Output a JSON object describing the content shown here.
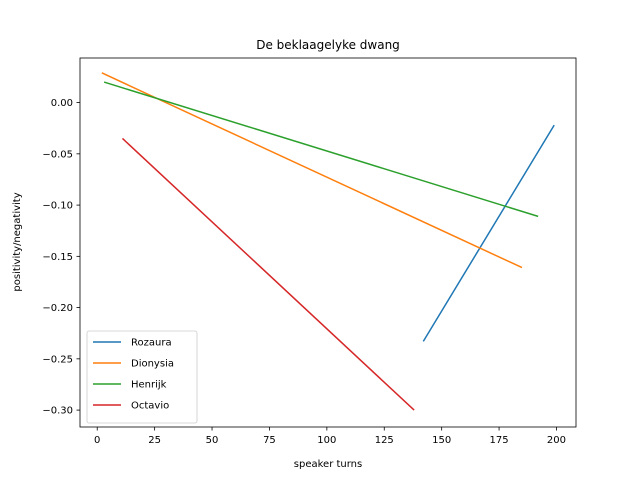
{
  "chart_data": {
    "type": "line",
    "title": "De beklaagelyke dwang",
    "xlabel": "speaker turns",
    "ylabel": "positivity/negativity",
    "xlim": [
      -7.5,
      208.5
    ],
    "ylim": [
      -0.3165,
      0.0435
    ],
    "xticks": [
      0,
      25,
      50,
      75,
      100,
      125,
      150,
      175,
      200
    ],
    "xtick_labels": [
      "0",
      "25",
      "50",
      "75",
      "100",
      "125",
      "150",
      "175",
      "200"
    ],
    "yticks": [
      0.0,
      -0.05,
      -0.1,
      -0.15,
      -0.2,
      -0.25,
      -0.3
    ],
    "ytick_labels": [
      "0.00",
      "−0.05",
      "−0.10",
      "−0.15",
      "−0.20",
      "−0.25",
      "−0.30"
    ],
    "grid": false,
    "legend_position": "lower-left",
    "series": [
      {
        "name": "Rozaura",
        "color": "#1f77b4",
        "x": [
          142,
          199
        ],
        "y": [
          -0.233,
          -0.022
        ]
      },
      {
        "name": "Dionysia",
        "color": "#ff7f0e",
        "x": [
          2,
          185
        ],
        "y": [
          0.029,
          -0.161
        ]
      },
      {
        "name": "Henrijk",
        "color": "#2ca02c",
        "x": [
          3,
          192
        ],
        "y": [
          0.02,
          -0.111
        ]
      },
      {
        "name": "Octavio",
        "color": "#d62728",
        "x": [
          11,
          138
        ],
        "y": [
          -0.035,
          -0.3
        ]
      }
    ]
  }
}
